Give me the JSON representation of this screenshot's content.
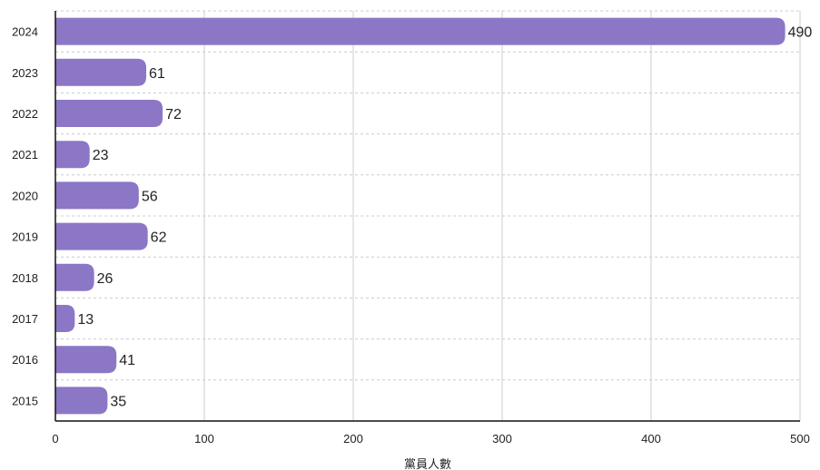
{
  "chart_data": {
    "type": "bar",
    "orientation": "horizontal",
    "categories": [
      "2024",
      "2023",
      "2022",
      "2021",
      "2020",
      "2019",
      "2018",
      "2017",
      "2016",
      "2015"
    ],
    "values": [
      490,
      61,
      72,
      23,
      56,
      62,
      26,
      13,
      41,
      35
    ],
    "xlabel": "黨員人數",
    "ylabel": "",
    "xlim": [
      0,
      500
    ],
    "xticks": [
      0,
      100,
      200,
      300,
      400,
      500
    ],
    "grid": true,
    "data_labels": true,
    "colors": {
      "bar": "#8c76c6",
      "grid": "#cccccc",
      "axis": "#111111"
    }
  }
}
